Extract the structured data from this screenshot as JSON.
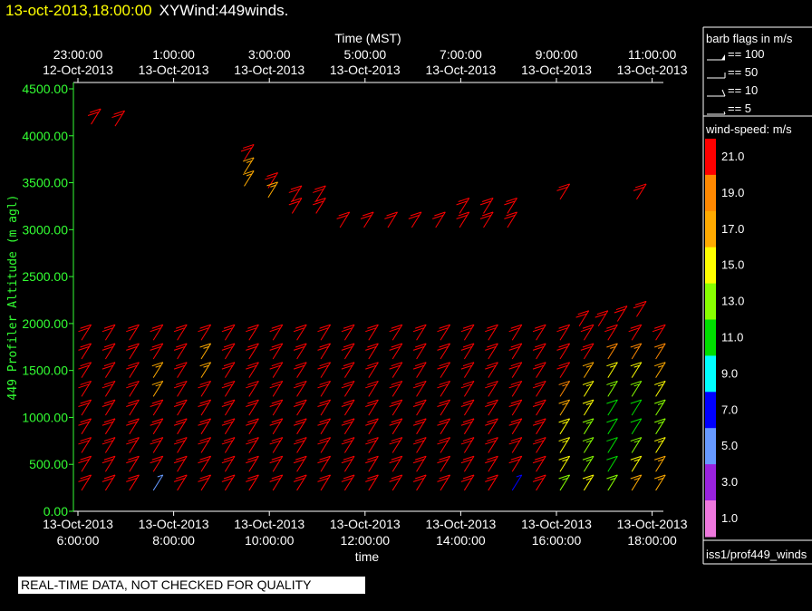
{
  "header": {
    "date": "13-oct-2013,18:00:00",
    "name": "XYWind:449winds."
  },
  "legend": {
    "barb_title": "barb flags in m/s",
    "barbs": [
      "== 100",
      "== 50",
      "== 10",
      "== 5"
    ],
    "speed_title": "wind-speed: m/s",
    "source": "iss1/prof449_winds"
  },
  "colors": {
    "y_axis": "#33ff33",
    "frame": "#ffffff",
    "background": "#000000"
  },
  "warning": "REAL-TIME DATA, NOT CHECKED FOR QUALITY",
  "chart_data": {
    "type": "wind-barb",
    "title": "XYWind:449winds.",
    "xlabel": "time",
    "x2label": "Time (MST)",
    "ylabel": "449 Profiler Altitude (m agl)",
    "xlim_hours": [
      5.9,
      18.2
    ],
    "ylim": [
      0,
      4600
    ],
    "bottom_ticks": [
      {
        "h": 6,
        "d": "13-Oct-2013",
        "t": "6:00:00"
      },
      {
        "h": 8,
        "d": "13-Oct-2013",
        "t": "8:00:00"
      },
      {
        "h": 10,
        "d": "13-Oct-2013",
        "t": "10:00:00"
      },
      {
        "h": 12,
        "d": "13-Oct-2013",
        "t": "12:00:00"
      },
      {
        "h": 14,
        "d": "13-Oct-2013",
        "t": "14:00:00"
      },
      {
        "h": 16,
        "d": "13-Oct-2013",
        "t": "16:00:00"
      },
      {
        "h": 18,
        "d": "13-Oct-2013",
        "t": "18:00:00"
      }
    ],
    "top_ticks": [
      {
        "h": 6,
        "d": "12-Oct-2013",
        "t": "23:00:00"
      },
      {
        "h": 8,
        "d": "13-Oct-2013",
        "t": "1:00:00"
      },
      {
        "h": 10,
        "d": "13-Oct-2013",
        "t": "3:00:00"
      },
      {
        "h": 12,
        "d": "13-Oct-2013",
        "t": "5:00:00"
      },
      {
        "h": 14,
        "d": "13-Oct-2013",
        "t": "7:00:00"
      },
      {
        "h": 16,
        "d": "13-Oct-2013",
        "t": "9:00:00"
      },
      {
        "h": 18,
        "d": "13-Oct-2013",
        "t": "11:00:00"
      }
    ],
    "y_ticks": [
      "0.00",
      "500.00",
      "1000.00",
      "1500.00",
      "2000.00",
      "2500.00",
      "3000.00",
      "3500.00",
      "4000.00",
      "4500.00"
    ],
    "colorscale": [
      {
        "v": "21.0",
        "c": "#ff0000"
      },
      {
        "v": "19.0",
        "c": "#ff8800"
      },
      {
        "v": "17.0",
        "c": "#ffaa00"
      },
      {
        "v": "15.0",
        "c": "#ffff00"
      },
      {
        "v": "13.0",
        "c": "#88ff00"
      },
      {
        "v": "11.0",
        "c": "#00dd00"
      },
      {
        "v": "9.0",
        "c": "#00ffff"
      },
      {
        "v": "7.0",
        "c": "#0000ff"
      },
      {
        "v": "5.0",
        "c": "#6699ff"
      },
      {
        "v": "3.0",
        "c": "#9922dd"
      },
      {
        "v": "1.0",
        "c": "#ee77dd"
      }
    ],
    "profile_times": [
      6.0,
      6.5,
      7.0,
      7.5,
      8.0,
      8.5,
      9.0,
      9.5,
      10.0,
      10.5,
      11.0,
      11.5,
      12.0,
      12.5,
      13.0,
      13.5,
      14.0,
      14.5,
      15.0,
      15.5,
      16.0,
      16.5,
      17.0,
      17.5,
      18.0
    ],
    "profile_altitudes": [
      300,
      500,
      700,
      900,
      1100,
      1300,
      1500,
      1700,
      1900
    ],
    "speeds": [
      [
        22,
        21,
        22,
        22,
        22,
        22,
        22,
        22,
        22
      ],
      [
        22,
        22,
        22,
        22,
        22,
        21,
        22,
        22,
        22
      ],
      [
        22,
        22,
        22,
        22,
        22,
        22,
        22,
        22,
        22
      ],
      [
        6,
        22,
        22,
        22,
        22,
        17,
        18,
        22,
        22
      ],
      [
        22,
        22,
        22,
        22,
        22,
        22,
        22,
        22,
        22
      ],
      [
        22,
        22,
        22,
        22,
        22,
        22,
        18,
        18,
        22
      ],
      [
        22,
        22,
        22,
        22,
        22,
        22,
        22,
        22,
        22
      ],
      [
        22,
        22,
        22,
        22,
        22,
        22,
        22,
        22,
        22
      ],
      [
        22,
        22,
        22,
        22,
        22,
        22,
        22,
        22,
        22
      ],
      [
        22,
        22,
        22,
        22,
        22,
        22,
        22,
        22,
        22
      ],
      [
        22,
        22,
        22,
        22,
        22,
        22,
        22,
        22,
        22
      ],
      [
        22,
        22,
        22,
        22,
        22,
        22,
        22,
        22,
        22
      ],
      [
        22,
        22,
        22,
        22,
        22,
        22,
        22,
        22,
        22
      ],
      [
        22,
        22,
        22,
        22,
        22,
        22,
        22,
        22,
        22
      ],
      [
        22,
        22,
        22,
        22,
        22,
        22,
        22,
        22,
        22
      ],
      [
        22,
        22,
        22,
        22,
        22,
        22,
        22,
        22,
        22
      ],
      [
        22,
        22,
        22,
        22,
        22,
        22,
        22,
        22,
        22
      ],
      [
        22,
        22,
        22,
        22,
        22,
        22,
        22,
        22,
        22
      ],
      [
        7,
        22,
        22,
        22,
        22,
        22,
        22,
        22,
        22
      ],
      [
        22,
        22,
        22,
        22,
        22,
        22,
        22,
        22,
        22
      ],
      [
        14,
        15,
        15,
        15,
        17,
        19,
        21,
        21,
        22
      ],
      [
        15,
        14,
        14,
        14,
        15,
        15,
        17,
        21,
        22
      ],
      [
        14,
        12,
        11,
        11,
        11,
        13,
        15,
        19,
        22
      ],
      [
        17,
        15,
        13,
        12,
        12,
        13,
        15,
        19,
        21
      ],
      [
        18,
        17,
        15,
        14,
        14,
        15,
        17,
        19,
        21
      ]
    ],
    "upper_barbs": [
      {
        "h": 6.2,
        "alt": 4200,
        "s": 22
      },
      {
        "h": 6.7,
        "alt": 4180,
        "s": 22
      },
      {
        "h": 9.4,
        "alt": 3820,
        "s": 22
      },
      {
        "h": 9.4,
        "alt": 3680,
        "s": 18
      },
      {
        "h": 9.4,
        "alt": 3540,
        "s": 18
      },
      {
        "h": 9.9,
        "alt": 3520,
        "s": 22
      },
      {
        "h": 9.9,
        "alt": 3420,
        "s": 18
      },
      {
        "h": 10.4,
        "alt": 3380,
        "s": 22
      },
      {
        "h": 10.4,
        "alt": 3250,
        "s": 22
      },
      {
        "h": 10.9,
        "alt": 3380,
        "s": 22
      },
      {
        "h": 10.9,
        "alt": 3250,
        "s": 22
      },
      {
        "h": 11.4,
        "alt": 3100,
        "s": 22
      },
      {
        "h": 11.9,
        "alt": 3100,
        "s": 22
      },
      {
        "h": 12.4,
        "alt": 3100,
        "s": 22
      },
      {
        "h": 12.9,
        "alt": 3100,
        "s": 22
      },
      {
        "h": 13.4,
        "alt": 3100,
        "s": 22
      },
      {
        "h": 13.9,
        "alt": 3250,
        "s": 22
      },
      {
        "h": 13.9,
        "alt": 3100,
        "s": 22
      },
      {
        "h": 14.4,
        "alt": 3250,
        "s": 22
      },
      {
        "h": 14.4,
        "alt": 3100,
        "s": 22
      },
      {
        "h": 14.9,
        "alt": 3250,
        "s": 22
      },
      {
        "h": 14.9,
        "alt": 3100,
        "s": 22
      },
      {
        "h": 16.0,
        "alt": 3400,
        "s": 22
      },
      {
        "h": 17.6,
        "alt": 3400,
        "s": 22
      },
      {
        "h": 17.6,
        "alt": 2150,
        "s": 22
      },
      {
        "h": 17.2,
        "alt": 2100,
        "s": 22
      },
      {
        "h": 16.8,
        "alt": 2050,
        "s": 22
      },
      {
        "h": 16.4,
        "alt": 2050,
        "s": 22
      }
    ]
  }
}
